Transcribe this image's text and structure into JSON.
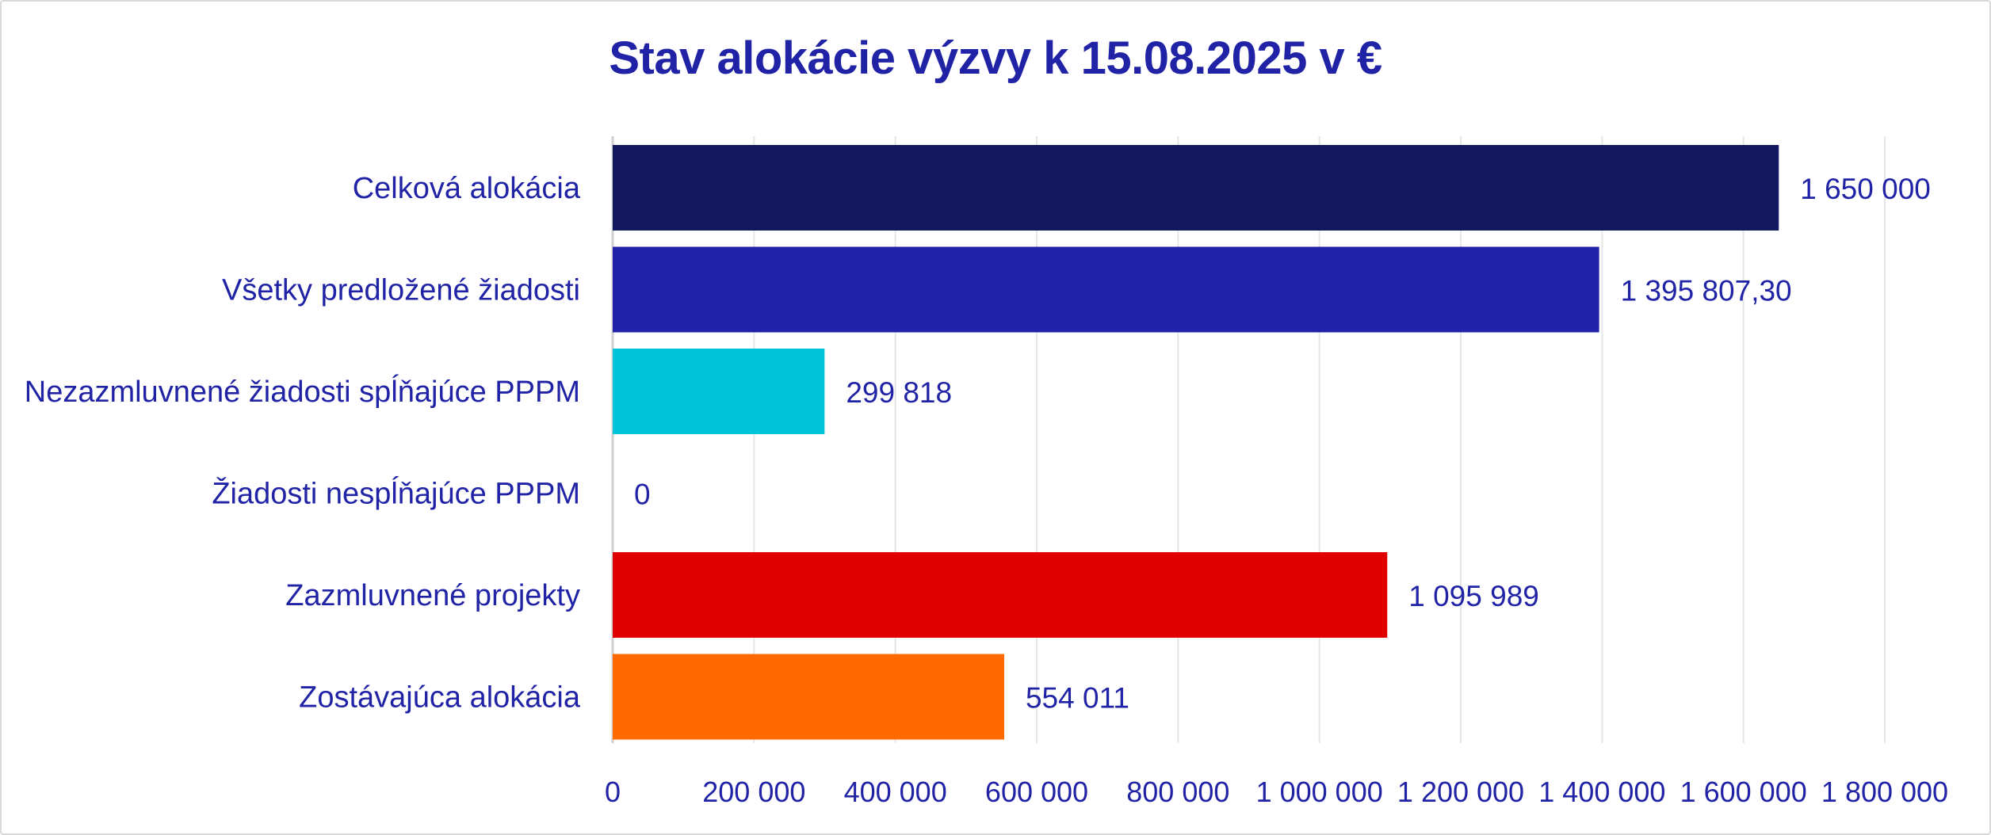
{
  "chart_data": {
    "type": "bar",
    "orientation": "horizontal",
    "title": "Stav alokácie výzvy k 15.08.2025 v €",
    "xlabel": "",
    "ylabel": "",
    "categories": [
      "Celková alokácia",
      "Všetky predložené žiadosti",
      "Nezazmluvnené žiadosti spĺňajúce PPPM",
      "Žiadosti nespĺňajúce PPPM",
      "Zazmluvnené projekty",
      "Zostávajúca alokácia"
    ],
    "values": [
      1650000,
      1395807.3,
      299818,
      0,
      1095989,
      554011
    ],
    "value_labels": [
      "1 650 000",
      "1 395 807,30",
      "299 818",
      "0",
      "1 095 989",
      "554 011"
    ],
    "colors": [
      "#13175e",
      "#2023a8",
      "#00c4d9",
      "#2023a8",
      "#e00000",
      "#ff6a00"
    ],
    "xlim": [
      0,
      1800000
    ],
    "xticks": [
      0,
      200000,
      400000,
      600000,
      800000,
      1000000,
      1200000,
      1400000,
      1600000,
      1800000
    ],
    "xtick_labels": [
      "0",
      "200 000",
      "400 000",
      "600 000",
      "800 000",
      "1 000 000",
      "1 200 000",
      "1 400 000",
      "1 600 000",
      "1 800 000"
    ],
    "grid": "vertical",
    "legend": "none",
    "text_color": "#2023a6"
  }
}
